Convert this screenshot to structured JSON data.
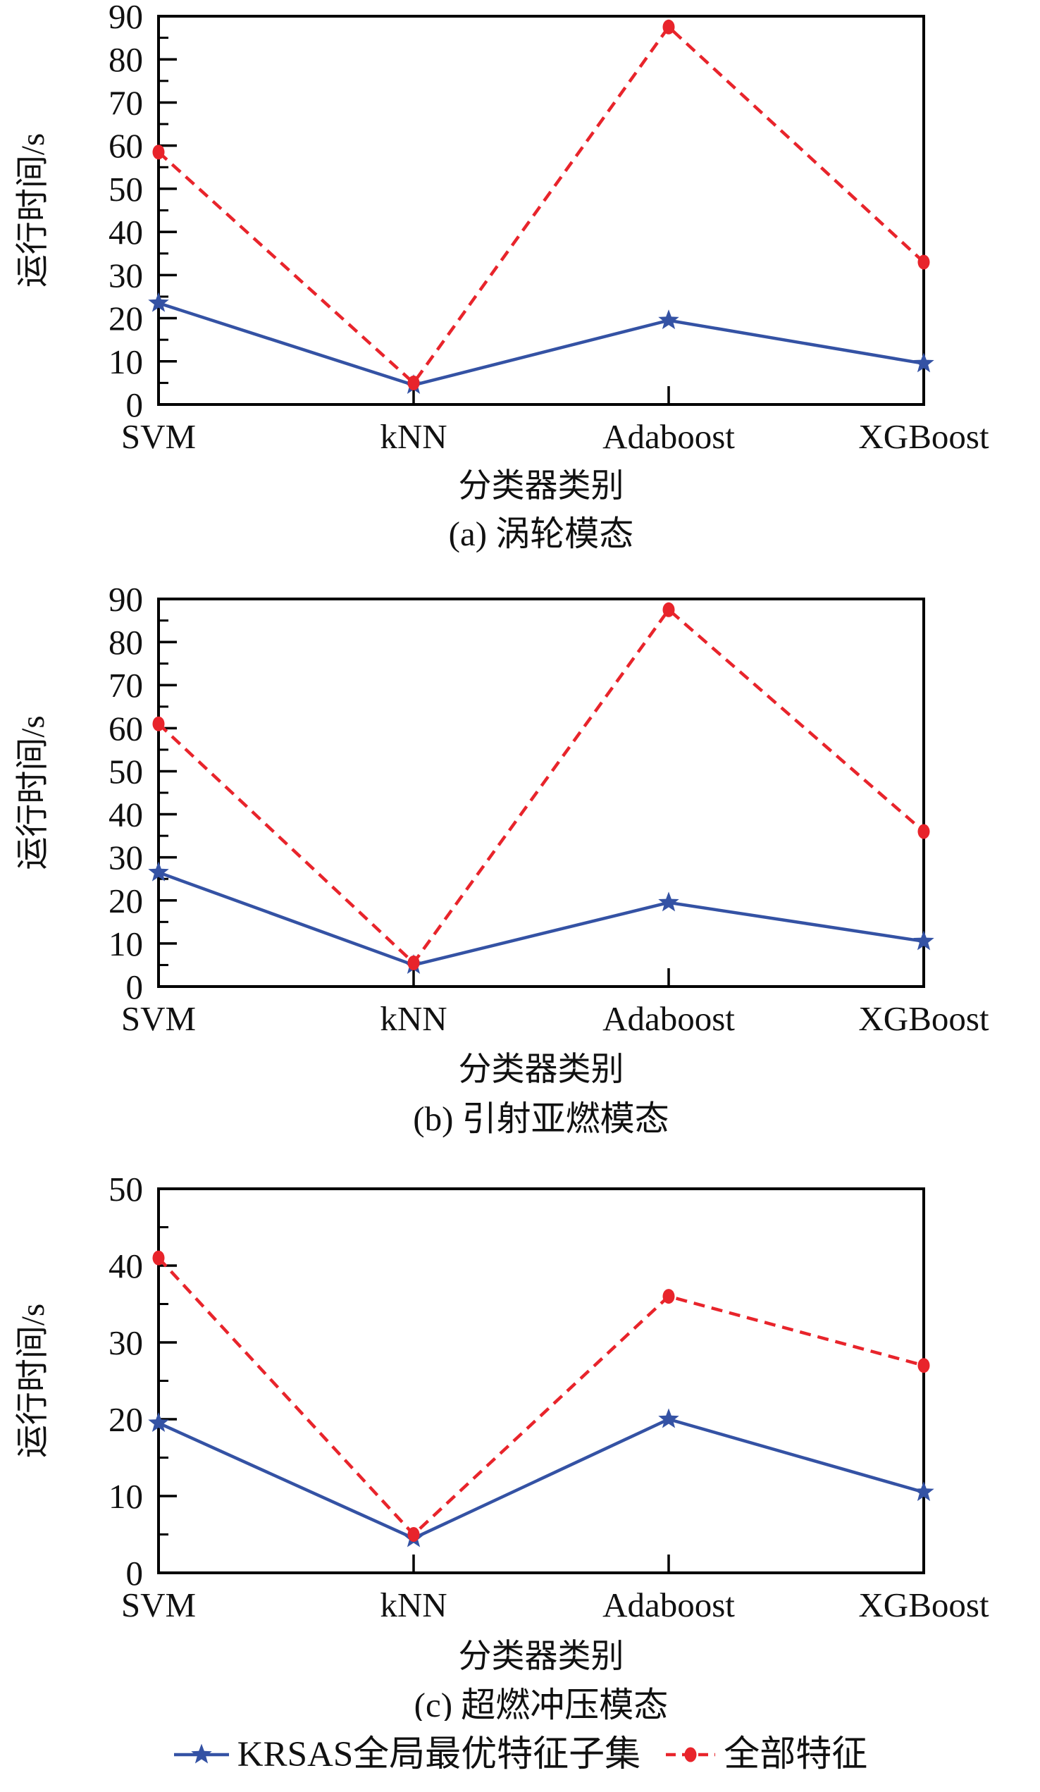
{
  "figure": {
    "background": "#ffffff",
    "axis_color": "#000000",
    "text_color": "#111111"
  },
  "chart_data": [
    {
      "type": "line",
      "title": "(a) 涡轮模态",
      "xlabel": "分类器类别",
      "ylabel": "运行时间/s",
      "categories": [
        "SVM",
        "kNN",
        "Adaboost",
        "XGBoost"
      ],
      "ylim": [
        0,
        90
      ],
      "ytick_step": 10,
      "grid": false,
      "series": [
        {
          "name": "KRSAS全局最优特征子集",
          "color": "#3452A4",
          "line_style": "solid",
          "marker": "star",
          "values": [
            23.5,
            4.5,
            19.5,
            9.5
          ]
        },
        {
          "name": "全部特征",
          "color": "#E8242B",
          "line_style": "dashed",
          "marker": "circle",
          "values": [
            58.5,
            5,
            87.5,
            33
          ]
        }
      ]
    },
    {
      "type": "line",
      "title": "(b) 引射亚燃模态",
      "xlabel": "分类器类别",
      "ylabel": "运行时间/s",
      "categories": [
        "SVM",
        "kNN",
        "Adaboost",
        "XGBoost"
      ],
      "ylim": [
        0,
        90
      ],
      "ytick_step": 10,
      "grid": false,
      "series": [
        {
          "name": "KRSAS全局最优特征子集",
          "color": "#3452A4",
          "line_style": "solid",
          "marker": "star",
          "values": [
            26.5,
            5,
            19.5,
            10.5
          ]
        },
        {
          "name": "全部特征",
          "color": "#E8242B",
          "line_style": "dashed",
          "marker": "circle",
          "values": [
            61,
            5.5,
            87.5,
            36
          ]
        }
      ]
    },
    {
      "type": "line",
      "title": "(c) 超燃冲压模态",
      "xlabel": "分类器类别",
      "ylabel": "运行时间/s",
      "categories": [
        "SVM",
        "kNN",
        "Adaboost",
        "XGBoost"
      ],
      "ylim": [
        0,
        50
      ],
      "ytick_step": 10,
      "grid": false,
      "series": [
        {
          "name": "KRSAS全局最优特征子集",
          "color": "#3452A4",
          "line_style": "solid",
          "marker": "star",
          "values": [
            19.5,
            4.5,
            20,
            10.5
          ]
        },
        {
          "name": "全部特征",
          "color": "#E8242B",
          "line_style": "dashed",
          "marker": "circle",
          "values": [
            41,
            5,
            36,
            27
          ]
        }
      ]
    }
  ],
  "legend": {
    "position": "bottom",
    "items": [
      {
        "label": "KRSAS全局最优特征子集",
        "marker": "star-on-solid-line",
        "color": "#3452A4"
      },
      {
        "label": "全部特征",
        "marker": "circle-on-dashed-line",
        "color": "#E8242B"
      }
    ]
  }
}
